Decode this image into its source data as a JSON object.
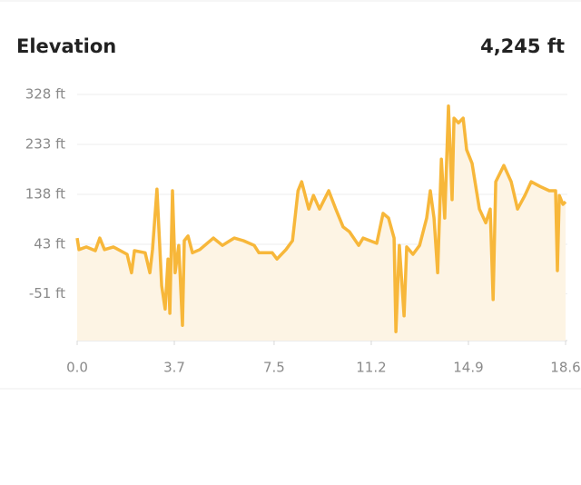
{
  "chart_data": {
    "type": "area",
    "title": "Elevation",
    "annotation": "4,245 ft",
    "color": "#f7b73a",
    "fill": "#fdf4e4",
    "x": [
      0.0,
      0.07,
      0.35,
      0.69,
      0.86,
      1.04,
      1.38,
      1.9,
      2.07,
      2.18,
      2.59,
      2.77,
      2.87,
      3.04,
      3.22,
      3.35,
      3.46,
      3.53,
      3.63,
      3.73,
      3.87,
      4.01,
      4.08,
      4.22,
      4.39,
      4.67,
      5.19,
      5.53,
      5.98,
      6.33,
      6.74,
      6.92,
      7.43,
      7.61,
      7.95,
      8.2,
      8.41,
      8.55,
      8.82,
      9.0,
      9.23,
      9.58,
      9.85,
      10.13,
      10.37,
      10.72,
      10.89,
      11.41,
      11.65,
      11.86,
      12.07,
      12.14,
      12.27,
      12.45,
      12.55,
      12.79,
      13.04,
      13.31,
      13.45,
      13.59,
      13.73,
      13.87,
      14.0,
      14.14,
      14.28,
      14.35,
      14.52,
      14.7,
      14.83,
      15.04,
      15.32,
      15.56,
      15.73,
      15.84,
      15.94,
      16.25,
      16.53,
      16.77,
      17.05,
      17.29,
      17.63,
      17.98,
      18.22,
      18.29,
      18.36,
      18.5,
      18.6
    ],
    "values": [
      55,
      33,
      38,
      31,
      55,
      33,
      38,
      24,
      -11,
      31,
      27,
      -11,
      33,
      148,
      -36,
      -80,
      15,
      -88,
      145,
      -11,
      41,
      -111,
      50,
      59,
      27,
      33,
      55,
      41,
      55,
      50,
      41,
      27,
      27,
      15,
      33,
      50,
      145,
      162,
      110,
      136,
      110,
      145,
      110,
      76,
      67,
      41,
      55,
      45,
      102,
      93,
      55,
      -123,
      41,
      -93,
      38,
      24,
      41,
      93,
      145,
      93,
      -11,
      205,
      93,
      306,
      128,
      283,
      274,
      283,
      223,
      197,
      110,
      84,
      110,
      -62,
      162,
      193,
      162,
      110,
      136,
      162,
      153,
      145,
      145,
      -7,
      136,
      119,
      124
    ],
    "xlim": [
      0,
      18.6
    ],
    "xticks": [
      {
        "value": 0,
        "label": "0.0"
      },
      3.7,
      7.5,
      11.2,
      14.9,
      18.6
    ],
    "ylim": [
      -140,
      328
    ],
    "yticks": [
      {
        "value": 328,
        "label": "328 ft"
      },
      {
        "value": 233,
        "label": "233 ft"
      },
      {
        "value": 138,
        "label": "138 ft"
      },
      {
        "value": 43,
        "label": "43 ft"
      },
      {
        "value": -51,
        "label": "-51 ft"
      }
    ],
    "grid": true
  }
}
